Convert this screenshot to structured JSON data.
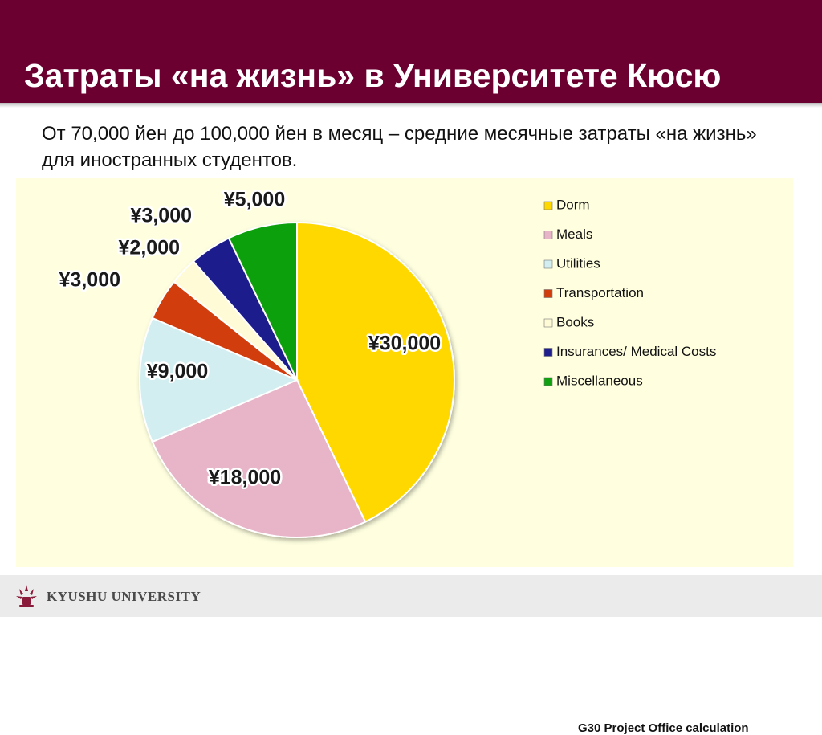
{
  "slide": {
    "title": "Затраты «на жизнь» в Университете Кюсю",
    "subtitle": "От 70,000 йен до 100,000 йен в месяц – средние месячные затраты «на жизнь» для иностранных студентов."
  },
  "chart_data": {
    "type": "pie",
    "categories": [
      "Dorm",
      "Meals",
      "Utilities",
      "Transportation",
      "Books",
      "Insurances/ Medical Costs",
      "Miscellaneous"
    ],
    "values": [
      30000,
      18000,
      9000,
      3000,
      2000,
      3000,
      5000
    ],
    "labels": [
      "¥30,000",
      "¥18,000",
      "¥9,000",
      "¥3,000",
      "¥2,000",
      "¥3,000",
      "¥5,000"
    ],
    "colors": [
      "#ffd800",
      "#e8b4c8",
      "#d2eef0",
      "#d23c0a",
      "#fffbd6",
      "#1e1e8c",
      "#10a010"
    ],
    "start": "12 o'clock",
    "direction": "clockwise",
    "legend_position": "right",
    "source": "G30 Project Office calculation"
  },
  "footer": {
    "university": "KYUSHU UNIVERSITY"
  }
}
